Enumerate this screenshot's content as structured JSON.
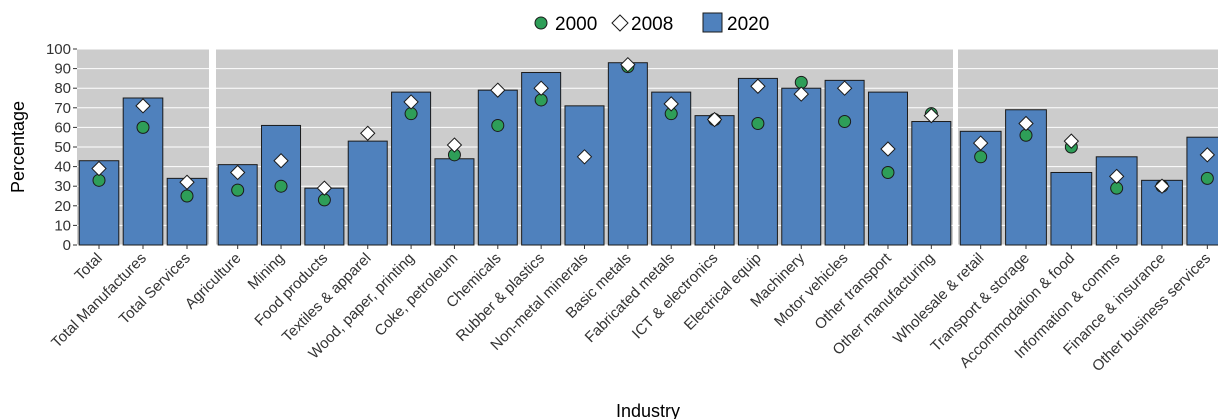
{
  "chart_data": {
    "type": "bar",
    "xlabel": "Industry",
    "ylabel": "Percentage",
    "ylim": [
      0,
      100
    ],
    "yticks": [
      0,
      10,
      20,
      30,
      40,
      50,
      60,
      70,
      80,
      90,
      100
    ],
    "grid": true,
    "legend_position": "top",
    "colors": {
      "bar": "#4F81BD",
      "marker_2000": "#2E9E58",
      "marker_2008": "#FFFFFF",
      "panel": "#CCCCCC"
    },
    "series": [
      {
        "name": "2000",
        "kind": "point-circle"
      },
      {
        "name": "2008",
        "kind": "point-diamond"
      },
      {
        "name": "2020",
        "kind": "bar"
      }
    ],
    "panels": [
      {
        "categories": [
          "Total",
          "Total Manufactures",
          "Total Services"
        ],
        "v2020": [
          43,
          75,
          34
        ],
        "v2000": [
          33,
          60,
          25
        ],
        "v2008": [
          39,
          71,
          32
        ]
      },
      {
        "categories": [
          "Agriculture",
          "Mining",
          "Food products",
          "Textiles & apparel",
          "Wood, paper, printing",
          "Coke, petroleum",
          "Chemicals",
          "Rubber & plastics",
          "Non-metal minerals",
          "Basic metals",
          "Fabricated metals",
          "ICT & electronics",
          "Electrical equip",
          "Machinery",
          "Motor vehicles",
          "Other transport",
          "Other manufacturing"
        ],
        "v2020": [
          41,
          61,
          29,
          53,
          78,
          44,
          79,
          88,
          71,
          93,
          78,
          66,
          85,
          80,
          84,
          78,
          63
        ],
        "v2000": [
          28,
          30,
          23,
          null,
          67,
          46,
          61,
          74,
          null,
          91,
          67,
          64,
          62,
          83,
          63,
          37,
          67
        ],
        "v2008": [
          37,
          43,
          29,
          57,
          73,
          51,
          79,
          80,
          45,
          92,
          72,
          64,
          81,
          77,
          80,
          49,
          66
        ]
      },
      {
        "categories": [
          "Wholesale & retail",
          "Transport & storage",
          "Accommodation & food",
          "Information & comms",
          "Finance & insurance",
          "Other business services"
        ],
        "v2020": [
          58,
          69,
          37,
          45,
          33,
          55
        ],
        "v2000": [
          45,
          56,
          50,
          29,
          30,
          34
        ],
        "v2008": [
          52,
          62,
          53,
          35,
          30,
          46
        ]
      }
    ]
  }
}
